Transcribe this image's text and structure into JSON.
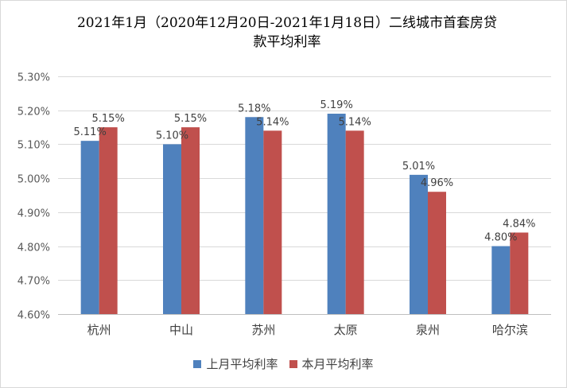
{
  "chart_data": {
    "type": "bar",
    "title_line1": "2021年1月（2020年12月20日-2021年1月18日）二线城市首套房贷",
    "title_line2": "款平均利率",
    "categories": [
      "杭州",
      "中山",
      "苏州",
      "太原",
      "泉州",
      "哈尔滨"
    ],
    "series": [
      {
        "name": "上月平均利率",
        "color": "#4f81bd",
        "values": [
          5.11,
          5.1,
          5.18,
          5.19,
          5.01,
          4.8
        ],
        "labels": [
          "5.11%",
          "5.10%",
          "5.18%",
          "5.19%",
          "5.01%",
          "4.80%"
        ]
      },
      {
        "name": "本月平均利率",
        "color": "#c0504d",
        "values": [
          5.15,
          5.15,
          5.14,
          5.14,
          4.96,
          4.84
        ],
        "labels": [
          "5.15%",
          "5.15%",
          "5.14%",
          "5.14%",
          "4.96%",
          "4.84%"
        ]
      }
    ],
    "ylim": [
      4.6,
      5.3
    ],
    "yticks": [
      4.6,
      4.7,
      4.8,
      4.9,
      5.0,
      5.1,
      5.2,
      5.3
    ],
    "ytick_labels": [
      "4.60%",
      "4.70%",
      "4.80%",
      "4.90%",
      "5.00%",
      "5.10%",
      "5.20%",
      "5.30%"
    ],
    "grid": true,
    "legend_position": "bottom"
  }
}
